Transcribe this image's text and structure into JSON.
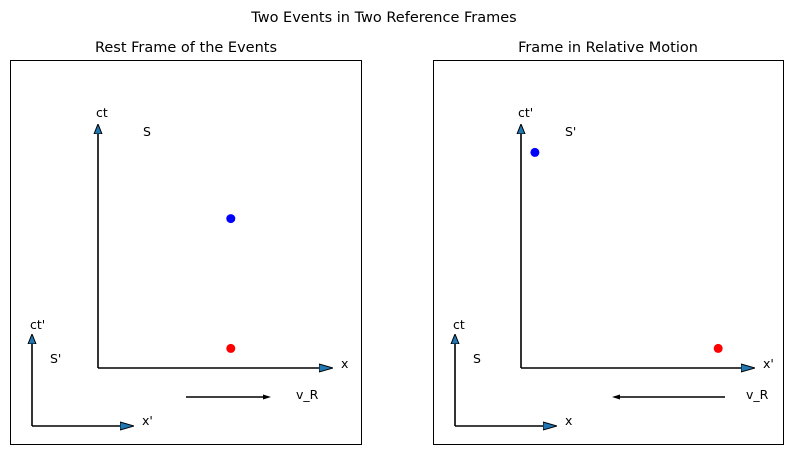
{
  "figure": {
    "title": "Two Events in Two Reference Frames"
  },
  "colors": {
    "axis": "#000000",
    "arrowhead_fill": "#1f77b4",
    "event_blue": "#0000ff",
    "event_red": "#ff0000",
    "frame": "#000000"
  },
  "panels": [
    {
      "title": "Rest Frame of the Events",
      "main_axes": {
        "x_label": "x",
        "t_label": "ct",
        "frame_label": "S"
      },
      "inset_axes": {
        "x_label": "x'",
        "t_label": "ct'",
        "frame_label": "S'"
      },
      "velocity": {
        "label": "v_R",
        "direction": "right"
      },
      "events": [
        {
          "color": "blue",
          "x": 0.57,
          "ct": 0.61
        },
        {
          "color": "red",
          "x": 0.57,
          "ct": 0.08
        }
      ]
    },
    {
      "title": "Frame in Relative Motion",
      "main_axes": {
        "x_label": "x'",
        "t_label": "ct'",
        "frame_label": "S'"
      },
      "inset_axes": {
        "x_label": "x",
        "t_label": "ct",
        "frame_label": "S"
      },
      "velocity": {
        "label": "v_R",
        "direction": "left"
      },
      "events": [
        {
          "color": "blue",
          "x": 0.06,
          "ct": 0.88
        },
        {
          "color": "red",
          "x": 0.85,
          "ct": 0.08
        }
      ]
    }
  ]
}
